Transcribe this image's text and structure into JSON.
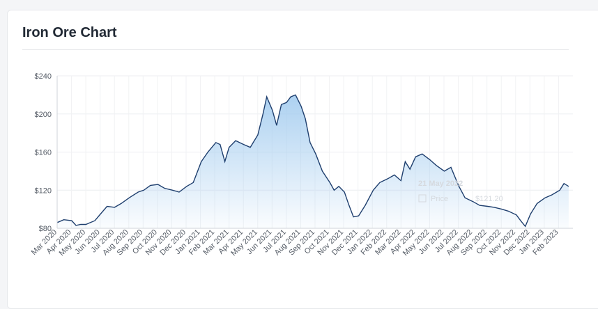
{
  "title": "Iron Ore Chart",
  "chart_data": {
    "type": "area",
    "title": "Iron Ore Chart",
    "xlabel": "",
    "ylabel": "",
    "ylim": [
      80,
      240
    ],
    "yticks": [
      "$80",
      "$120",
      "$160",
      "$200",
      "$240"
    ],
    "ytick_values": [
      80,
      120,
      160,
      200,
      240
    ],
    "xticks": [
      "Mar 2020",
      "Apr 2020",
      "May 2020",
      "Jun 2020",
      "Jul 2020",
      "Aug 2020",
      "Sep 2020",
      "Oct 2020",
      "Nov 2020",
      "Dec 2020",
      "Jan 2021",
      "Feb 2021",
      "Mar 2021",
      "Apr 2021",
      "May 2021",
      "Jun 2021",
      "Jul 2021",
      "Aug 2021",
      "Sep 2021",
      "Oct 2021",
      "Nov 2021",
      "Dec 2021",
      "Jan 2022",
      "Feb 2022",
      "Mar 2022",
      "Apr 2022",
      "May 2022",
      "Jun 2022",
      "Jul 2022",
      "Aug 2022",
      "Sep 2022",
      "Oct 2022",
      "Nov 2022",
      "Dec 2022",
      "Jan 2023",
      "Feb 2023"
    ],
    "grid": true,
    "legend": "none",
    "line_color": "#1f3f6e",
    "fill_color": "#9ec9ee",
    "series": [
      {
        "x": [
          "2020-03-01",
          "2020-03-15",
          "2020-04-01",
          "2020-04-10",
          "2020-04-20",
          "2020-05-01",
          "2020-05-20",
          "2020-06-01",
          "2020-06-15",
          "2020-07-01",
          "2020-07-15",
          "2020-08-01",
          "2020-08-20",
          "2020-09-01",
          "2020-09-15",
          "2020-10-01",
          "2020-10-15",
          "2020-11-01",
          "2020-11-15",
          "2020-12-01",
          "2020-12-15",
          "2021-01-01",
          "2021-01-15",
          "2021-02-01",
          "2021-02-10",
          "2021-02-20",
          "2021-03-01",
          "2021-03-15",
          "2021-04-01",
          "2021-04-15",
          "2021-05-01",
          "2021-05-12",
          "2021-05-20",
          "2021-06-01",
          "2021-06-10",
          "2021-06-20",
          "2021-07-01",
          "2021-07-10",
          "2021-07-20",
          "2021-08-01",
          "2021-08-10",
          "2021-08-20",
          "2021-09-01",
          "2021-09-15",
          "2021-10-01",
          "2021-10-10",
          "2021-10-20",
          "2021-11-01",
          "2021-11-10",
          "2021-11-20",
          "2021-12-01",
          "2021-12-15",
          "2022-01-01",
          "2022-01-15",
          "2022-02-01",
          "2022-02-15",
          "2022-03-01",
          "2022-03-10",
          "2022-03-20",
          "2022-04-01",
          "2022-04-15",
          "2022-05-01",
          "2022-05-15",
          "2022-06-01",
          "2022-06-15",
          "2022-07-01",
          "2022-07-15",
          "2022-08-01",
          "2022-08-15",
          "2022-09-01",
          "2022-09-15",
          "2022-10-01",
          "2022-10-15",
          "2022-11-01",
          "2022-11-10",
          "2022-11-20",
          "2022-12-01",
          "2022-12-15",
          "2023-01-01",
          "2023-01-15",
          "2023-02-01",
          "2023-02-10",
          "2023-02-20"
        ],
        "values": [
          86,
          89,
          88,
          83,
          84,
          84,
          88,
          95,
          103,
          102,
          106,
          112,
          118,
          120,
          125,
          126,
          122,
          120,
          118,
          124,
          128,
          150,
          160,
          170,
          168,
          150,
          165,
          172,
          168,
          165,
          178,
          200,
          218,
          204,
          188,
          210,
          212,
          218,
          220,
          208,
          195,
          170,
          158,
          140,
          128,
          120,
          124,
          118,
          105,
          92,
          93,
          104,
          120,
          128,
          132,
          136,
          130,
          150,
          142,
          155,
          158,
          152,
          146,
          140,
          144,
          125,
          112,
          108,
          104,
          103,
          102,
          100,
          98,
          94,
          88,
          82,
          95,
          106,
          112,
          115,
          120,
          127,
          124
        ]
      }
    ],
    "tooltip": {
      "date": "21 May 2022",
      "series_name": "Price",
      "value": "$121.20"
    }
  }
}
